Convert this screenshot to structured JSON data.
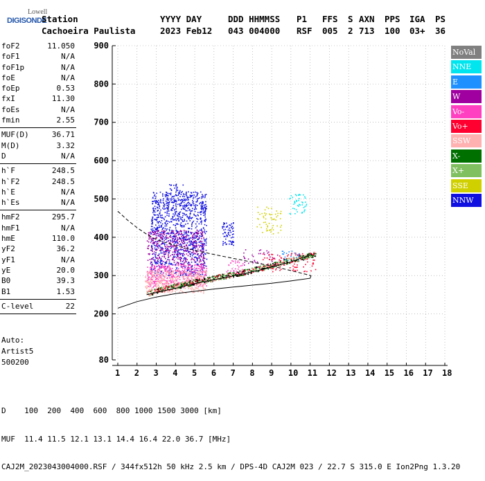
{
  "logo": {
    "line1": "Lowell",
    "line2": "DIGISONDE"
  },
  "header": {
    "labels": [
      "Station",
      "YYYY DAY",
      "DDD HHMMSS",
      "P1",
      "FFS",
      "S",
      "AXN",
      "PPS",
      "IGA",
      "PS"
    ],
    "station": "Cachoeira Paulista",
    "yyyy_day": "2023 Feb12",
    "ddd_hhmmss": "043 004000",
    "p1": "RSF",
    "ffs": "005",
    "s": "2",
    "axn": "713",
    "pps": "100",
    "iga": "03+",
    "ps": "36"
  },
  "params": {
    "group1": [
      {
        "k": "foF2",
        "v": "11.050"
      },
      {
        "k": "foF1",
        "v": "N/A"
      },
      {
        "k": "foF1p",
        "v": "N/A"
      },
      {
        "k": "foE",
        "v": "N/A"
      },
      {
        "k": "foEp",
        "v": "0.53"
      },
      {
        "k": "fxI",
        "v": "11.30"
      },
      {
        "k": "foEs",
        "v": "N/A"
      },
      {
        "k": "fmin",
        "v": "2.55"
      }
    ],
    "group2": [
      {
        "k": "MUF(D)",
        "v": "36.71"
      },
      {
        "k": "M(D)",
        "v": "3.32"
      },
      {
        "k": "D",
        "v": "N/A"
      }
    ],
    "group3": [
      {
        "k": "h`F",
        "v": "248.5"
      },
      {
        "k": "h`F2",
        "v": "248.5"
      },
      {
        "k": "h`E",
        "v": "N/A"
      },
      {
        "k": "h`Es",
        "v": "N/A"
      }
    ],
    "group4": [
      {
        "k": "hmF2",
        "v": "295.7"
      },
      {
        "k": "hmF1",
        "v": "N/A"
      },
      {
        "k": "hmE",
        "v": "110.0"
      },
      {
        "k": "yF2",
        "v": "36.2"
      },
      {
        "k": "yF1",
        "v": "N/A"
      },
      {
        "k": "yE",
        "v": "20.0"
      },
      {
        "k": "B0",
        "v": "39.3"
      },
      {
        "k": "B1",
        "v": "1.53"
      }
    ],
    "group5": [
      {
        "k": "C-level",
        "v": "22"
      }
    ]
  },
  "auto": {
    "l1": "Auto:",
    "l2": "Artist5",
    "l3": "500200"
  },
  "legend": [
    {
      "label": "NoVal",
      "color": "#808080"
    },
    {
      "label": "NNE",
      "color": "#00e5ee"
    },
    {
      "label": "E",
      "color": "#1e90ff"
    },
    {
      "label": "W",
      "color": "#a000a0"
    },
    {
      "label": "Vo-",
      "color": "#ff40c0"
    },
    {
      "label": "Vo+",
      "color": "#ff0030"
    },
    {
      "label": "SSW",
      "color": "#ffb0b0"
    },
    {
      "label": "X-",
      "color": "#007000"
    },
    {
      "label": "X+",
      "color": "#80c060"
    },
    {
      "label": "SSE",
      "color": "#d0d000"
    },
    {
      "label": "NNW",
      "color": "#1010e0"
    }
  ],
  "footer": {
    "d_line": "D    100  200  400  600  800 1000 1500 3000 [km]",
    "muf_line": "MUF  11.4 11.5 12.1 13.1 14.4 16.4 22.0 36.7 [MHz]",
    "file_line": "CAJ2M_2023043004000.RSF / 344fx512h 50 kHz 2.5 km / DPS-4D CAJ2M 023 / 22.7 S 315.0 E Ion2Png 1.3.20"
  },
  "chart_data": {
    "type": "scatter",
    "xlim": [
      1,
      18
    ],
    "ylim": [
      80,
      900
    ],
    "x_ticks": [
      "1",
      "2",
      "3",
      "4",
      "5",
      "6",
      "7",
      "8",
      "9",
      "10",
      "11",
      "12",
      "13",
      "14",
      "15",
      "16",
      "17",
      "18"
    ],
    "y_ticks": [
      "80",
      "200",
      "300",
      "400",
      "500",
      "600",
      "700",
      "800",
      "900"
    ],
    "grid": true,
    "legend_position": "right",
    "clusters": [
      {
        "color": "#1010e0",
        "fmin": 2.7,
        "fmax": 5.6,
        "hmin": 300,
        "hmax": 520,
        "n": 1100
      },
      {
        "color": "#1010e0",
        "fmin": 6.4,
        "fmax": 7.0,
        "hmin": 380,
        "hmax": 440,
        "n": 70
      },
      {
        "color": "#1010e0",
        "fmin": 3.5,
        "fmax": 4.5,
        "hmin": 450,
        "hmax": 540,
        "n": 50
      },
      {
        "color": "#a000a0",
        "fmin": 2.5,
        "fmax": 5.5,
        "hmin": 330,
        "hmax": 420,
        "n": 380
      },
      {
        "color": "#ff40c0",
        "fmin": 2.5,
        "fmax": 5.6,
        "hmin": 270,
        "hmax": 330,
        "n": 420
      },
      {
        "color": "#ffb0b0",
        "fmin": 2.4,
        "fmax": 5.6,
        "hmin": 255,
        "hmax": 315,
        "n": 380
      },
      {
        "color": "#00e5ee",
        "fmin": 9.9,
        "fmax": 10.8,
        "hmin": 460,
        "hmax": 515,
        "n": 45
      },
      {
        "color": "#d0d000",
        "fmin": 8.2,
        "fmax": 9.5,
        "hmin": 410,
        "hmax": 480,
        "n": 60
      },
      {
        "color": "#1e90ff",
        "fmin": 9.5,
        "fmax": 10.5,
        "hmin": 340,
        "hmax": 365,
        "n": 25
      },
      {
        "color": "#a000a0",
        "fmin": 7.5,
        "fmax": 9.3,
        "hmin": 320,
        "hmax": 370,
        "n": 40
      },
      {
        "color": "#ff0030",
        "fmin": 8.5,
        "fmax": 11.3,
        "hmin": 310,
        "hmax": 360,
        "n": 90
      },
      {
        "color": "#ff40c0",
        "fmin": 6.6,
        "fmax": 7.5,
        "hmin": 300,
        "hmax": 340,
        "n": 40
      }
    ],
    "trace": {
      "f": [
        2.5,
        3.0,
        3.5,
        4.0,
        4.5,
        5.0,
        5.5,
        6.0,
        6.5,
        7.0,
        7.5,
        8.0,
        8.5,
        9.0,
        9.5,
        10.0,
        10.5,
        11.0,
        11.3
      ],
      "h": [
        252,
        260,
        266,
        272,
        277,
        283,
        287,
        293,
        298,
        303,
        308,
        314,
        320,
        326,
        333,
        340,
        346,
        352,
        358
      ]
    },
    "colors": [
      "#ff0030",
      "#007000",
      "#ffb0b0",
      "#80c060",
      "#000000"
    ],
    "lines": [
      {
        "name": "",
        "style": "solid",
        "f": [
          1.0,
          2.0,
          3.0,
          4.0,
          5.0,
          6.0,
          7.0,
          8.0,
          9.0,
          10.0,
          11.0,
          11.05
        ],
        "h": [
          215,
          232,
          244,
          253,
          259,
          265,
          270,
          275,
          280,
          286,
          293,
          300
        ]
      },
      {
        "name": "",
        "style": "solid",
        "f": [
          2.5,
          3.0,
          4.0,
          5.0,
          6.0,
          7.0,
          8.0,
          9.0,
          10.0,
          11.05
        ],
        "h": [
          250,
          256,
          267,
          279,
          289,
          299,
          310,
          322,
          336,
          355
        ]
      },
      {
        "name": "",
        "style": "dashed",
        "f": [
          1.0,
          1.5,
          2.0,
          2.5,
          3.0,
          4.0,
          5.0,
          6.0,
          7.0,
          8.0,
          9.0,
          10.0,
          11.05
        ],
        "h": [
          468,
          445,
          425,
          408,
          394,
          378,
          366,
          355,
          345,
          335,
          325,
          313,
          300
        ]
      }
    ]
  }
}
